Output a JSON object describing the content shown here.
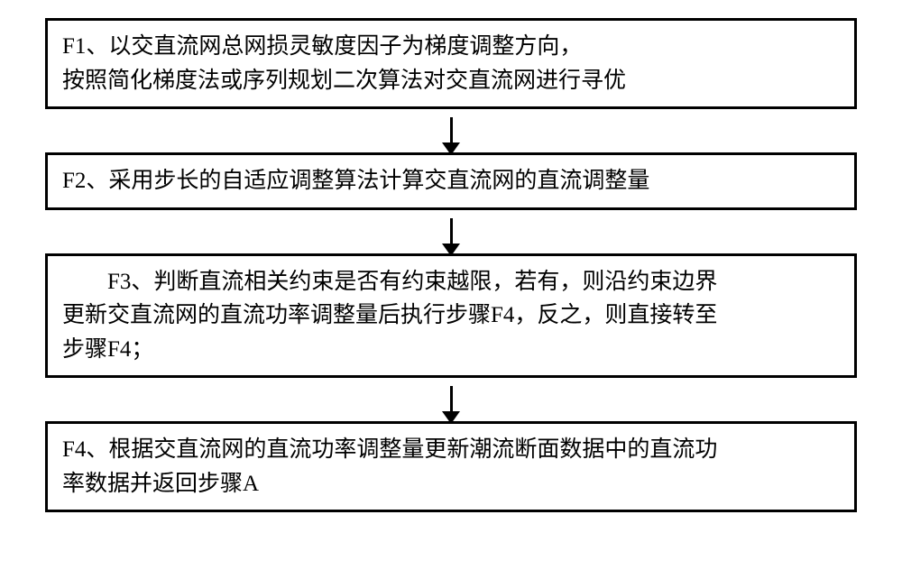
{
  "flowchart": {
    "type": "flowchart",
    "direction": "vertical",
    "background_color": "#ffffff",
    "border_color": "#000000",
    "border_width": 3,
    "arrow_color": "#000000",
    "font_family": "SimSun",
    "font_size": 25,
    "text_color": "#000000",
    "nodes": [
      {
        "id": "F1",
        "line1": "F1、以交直流网总网损灵敏度因子为梯度调整方向，",
        "line2": "按照简化梯度法或序列规划二次算法对交直流网进行寻优"
      },
      {
        "id": "F2",
        "text": "F2、采用步长的自适应调整算法计算交直流网的直流调整量"
      },
      {
        "id": "F3",
        "line1": "F3、判断直流相关约束是否有约束越限，若有，则沿约束边界",
        "line2": "更新交直流网的直流功率调整量后执行步骤F4，反之，则直接转至",
        "line3": "步骤F4；"
      },
      {
        "id": "F4",
        "line1": "F4、根据交直流网的直流功率调整量更新潮流断面数据中的直流功",
        "line2": "率数据并返回步骤A"
      }
    ],
    "edges": [
      {
        "from": "F1",
        "to": "F2"
      },
      {
        "from": "F2",
        "to": "F3"
      },
      {
        "from": "F3",
        "to": "F4"
      }
    ]
  }
}
